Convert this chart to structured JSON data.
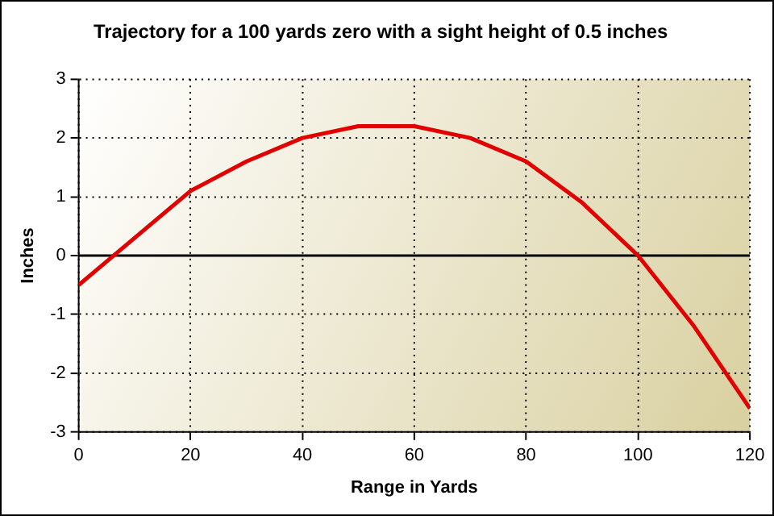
{
  "chart_data": {
    "type": "line",
    "title": "Trajectory for a 100 yards zero with a sight height of 0.5 inches",
    "xlabel": "Range in Yards",
    "ylabel": "Inches",
    "x": [
      0,
      10,
      20,
      30,
      40,
      50,
      60,
      70,
      80,
      90,
      100,
      110,
      120
    ],
    "series": [
      {
        "color": "#e00000",
        "values": [
          -0.5,
          0.3,
          1.1,
          1.6,
          2.0,
          2.2,
          2.2,
          2.0,
          1.6,
          0.9,
          0.0,
          -1.2,
          -2.6
        ]
      }
    ],
    "xlim": [
      0,
      120
    ],
    "xticks": [
      0,
      20,
      40,
      60,
      80,
      100,
      120
    ],
    "ylim": [
      -3,
      3
    ],
    "yticks": [
      -3,
      -2,
      -1,
      0,
      1,
      2,
      3
    ],
    "ref_lines": [
      {
        "axis": "y",
        "value": 0,
        "color": "#000000"
      }
    ],
    "grid": true,
    "line_style": "solid",
    "marker": "none",
    "legend": false
  }
}
